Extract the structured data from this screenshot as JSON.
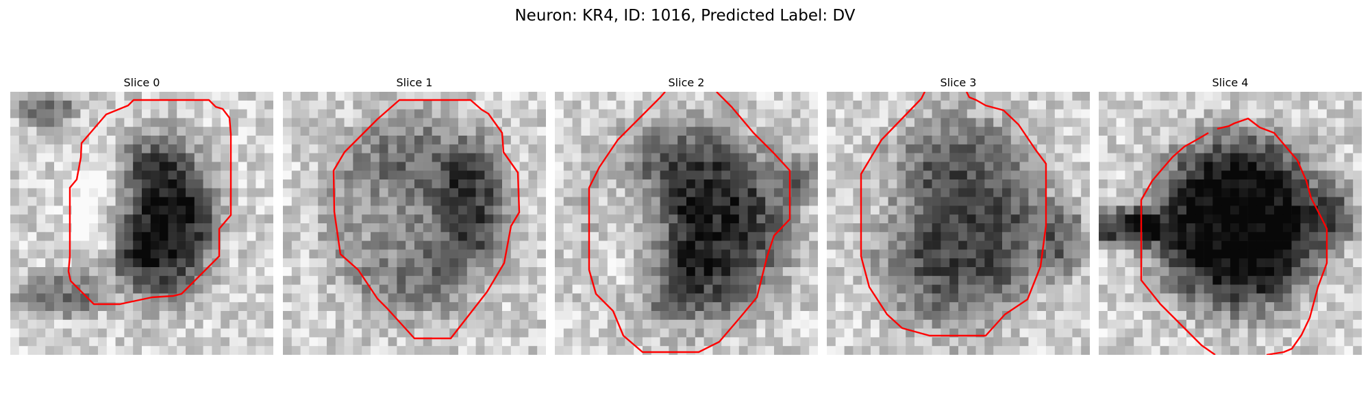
{
  "figure": {
    "title": "Neuron: KR4, ID: 1016, Predicted Label: DV",
    "contour_color": "#ff0000"
  },
  "panels": [
    {
      "title": "Slice 0",
      "image": "grayscale-em-slice",
      "contour": "red-outline"
    },
    {
      "title": "Slice 1",
      "image": "grayscale-em-slice",
      "contour": "red-outline"
    },
    {
      "title": "Slice 2",
      "image": "grayscale-em-slice",
      "contour": "red-outline"
    },
    {
      "title": "Slice 3",
      "image": "grayscale-em-slice",
      "contour": "red-outline"
    },
    {
      "title": "Slice 4",
      "image": "grayscale-em-slice",
      "contour": "red-outline"
    }
  ]
}
